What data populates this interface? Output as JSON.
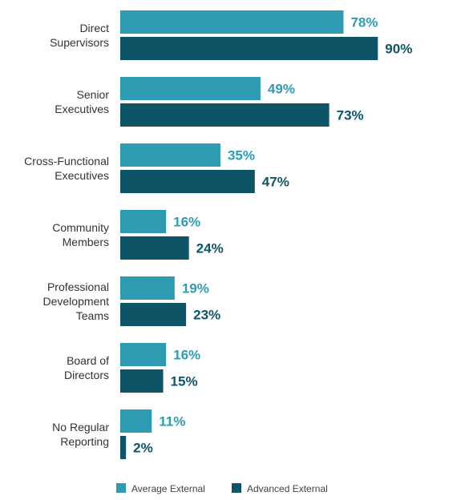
{
  "chart_data": {
    "type": "bar",
    "orientation": "horizontal",
    "categories": [
      [
        "Direct",
        "Supervisors"
      ],
      [
        "Senior",
        "Executives"
      ],
      [
        "Cross-Functional",
        "Executives"
      ],
      [
        "Community",
        "Members"
      ],
      [
        "Professional",
        "Development",
        "Teams"
      ],
      [
        "Board of",
        "Directors"
      ],
      [
        "No Regular",
        "Reporting"
      ]
    ],
    "series": [
      {
        "name": "Average External",
        "color": "#2e9bb3",
        "values": [
          78,
          49,
          35,
          16,
          19,
          16,
          11
        ],
        "labels": [
          "78%",
          "49%",
          "35%",
          "16%",
          "19%",
          "16%",
          "11%"
        ]
      },
      {
        "name": "Advanced External",
        "color": "#0d5467",
        "values": [
          90,
          73,
          47,
          24,
          23,
          15,
          2
        ],
        "labels": [
          "90%",
          "73%",
          "47%",
          "24%",
          "23%",
          "15%",
          "2%"
        ]
      }
    ],
    "xlim": [
      0,
      100
    ],
    "grid": false,
    "legend_position": "bottom"
  }
}
